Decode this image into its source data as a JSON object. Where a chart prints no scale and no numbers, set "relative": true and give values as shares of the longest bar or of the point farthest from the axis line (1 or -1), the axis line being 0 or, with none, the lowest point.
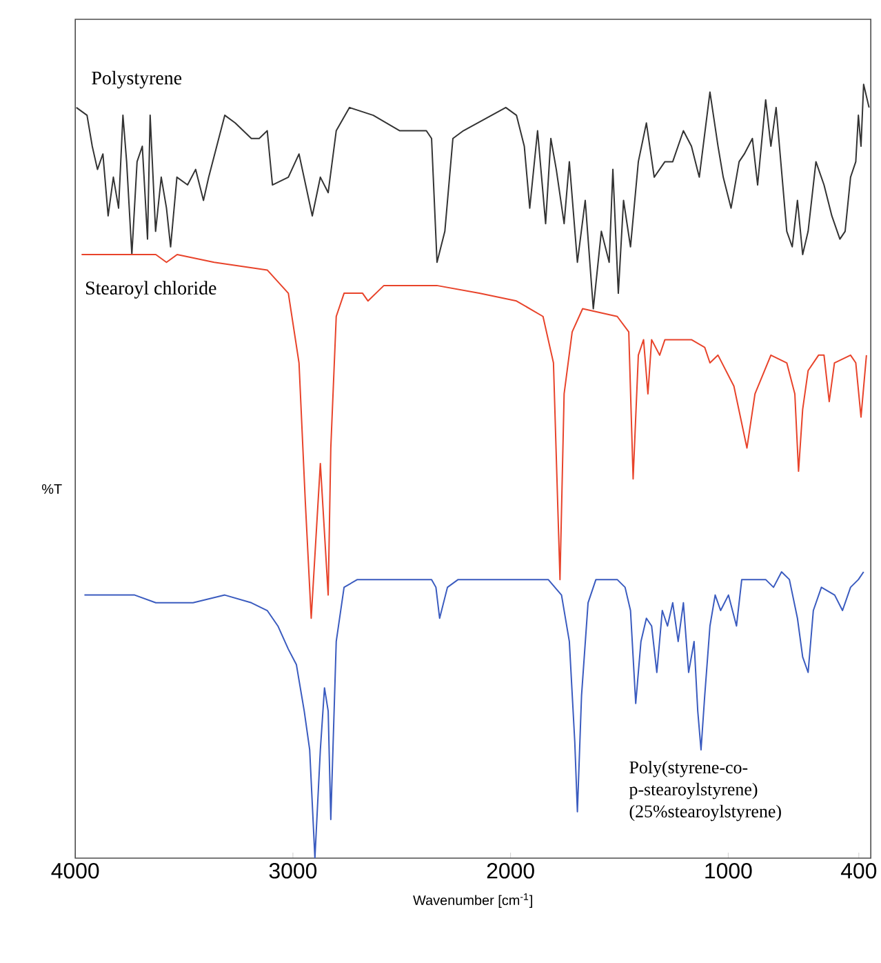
{
  "chart_data": {
    "type": "line",
    "relative": true,
    "xlabel": "Wavenumber [cm$^{-1}$]",
    "ylabel": "%T",
    "xlim": [
      4000,
      345
    ],
    "xticks": [
      4000,
      3000,
      2000,
      1000,
      400
    ],
    "grid": false,
    "marker": "none",
    "line_style": "solid",
    "series": [
      {
        "name": "Polystyrene",
        "color": "#333333",
        "x": [
          3995,
          3946,
          3922,
          3898,
          3873,
          3849,
          3825,
          3801,
          3781,
          3764,
          3740,
          3716,
          3692,
          3668,
          3656,
          3631,
          3605,
          3581,
          3562,
          3533,
          3484,
          3447,
          3411,
          3387,
          3313,
          3265,
          3191,
          3155,
          3118,
          3094,
          3021,
          2972,
          2911,
          2874,
          2838,
          2801,
          2740,
          2631,
          2509,
          2387,
          2363,
          2338,
          2302,
          2265,
          2217,
          2022,
          1973,
          1937,
          1912,
          1876,
          1839,
          1815,
          1790,
          1754,
          1730,
          1693,
          1657,
          1620,
          1583,
          1547,
          1530,
          1505,
          1481,
          1449,
          1413,
          1376,
          1340,
          1291,
          1255,
          1206,
          1169,
          1133,
          1084,
          1047,
          1023,
          987,
          950,
          926,
          889,
          865,
          828,
          804,
          780,
          731,
          706,
          682,
          658,
          633,
          597,
          560,
          524,
          487,
          463,
          438,
          414,
          402,
          390,
          378,
          353
        ],
        "values": [
          0.97,
          0.96,
          0.92,
          0.89,
          0.91,
          0.83,
          0.88,
          0.84,
          0.96,
          0.9,
          0.78,
          0.9,
          0.92,
          0.8,
          0.96,
          0.81,
          0.88,
          0.84,
          0.79,
          0.88,
          0.87,
          0.89,
          0.85,
          0.88,
          0.96,
          0.95,
          0.93,
          0.93,
          0.94,
          0.87,
          0.88,
          0.91,
          0.83,
          0.88,
          0.86,
          0.94,
          0.97,
          0.96,
          0.94,
          0.94,
          0.93,
          0.77,
          0.81,
          0.93,
          0.94,
          0.97,
          0.96,
          0.92,
          0.84,
          0.94,
          0.82,
          0.93,
          0.89,
          0.82,
          0.9,
          0.77,
          0.85,
          0.71,
          0.81,
          0.77,
          0.89,
          0.73,
          0.85,
          0.79,
          0.9,
          0.95,
          0.88,
          0.9,
          0.9,
          0.94,
          0.92,
          0.88,
          0.99,
          0.92,
          0.88,
          0.84,
          0.9,
          0.91,
          0.93,
          0.87,
          0.98,
          0.92,
          0.97,
          0.81,
          0.79,
          0.85,
          0.78,
          0.81,
          0.9,
          0.87,
          0.83,
          0.8,
          0.81,
          0.88,
          0.9,
          0.96,
          0.92,
          1.0,
          0.97
        ]
      },
      {
        "name": "Stearoyl chloride",
        "color": "#e8432a",
        "x": [
          3971,
          3849,
          3752,
          3630,
          3581,
          3532,
          3362,
          3118,
          3021,
          2972,
          2943,
          2916,
          2874,
          2838,
          2826,
          2801,
          2765,
          2680,
          2655,
          2582,
          2339,
          2144,
          1973,
          1851,
          1803,
          1773,
          1754,
          1717,
          1669,
          1510,
          1457,
          1437,
          1413,
          1389,
          1369,
          1352,
          1315,
          1291,
          1169,
          1108,
          1084,
          1047,
          974,
          914,
          877,
          804,
          731,
          694,
          677,
          658,
          633,
          585,
          560,
          536,
          512,
          438,
          414,
          390,
          365
        ],
        "values": [
          0.78,
          0.78,
          0.78,
          0.78,
          0.77,
          0.78,
          0.77,
          0.76,
          0.73,
          0.64,
          0.46,
          0.31,
          0.51,
          0.34,
          0.53,
          0.7,
          0.73,
          0.73,
          0.72,
          0.74,
          0.74,
          0.73,
          0.72,
          0.7,
          0.64,
          0.36,
          0.6,
          0.68,
          0.71,
          0.7,
          0.68,
          0.49,
          0.65,
          0.67,
          0.6,
          0.67,
          0.65,
          0.67,
          0.67,
          0.66,
          0.64,
          0.65,
          0.61,
          0.53,
          0.6,
          0.65,
          0.64,
          0.6,
          0.5,
          0.58,
          0.63,
          0.65,
          0.65,
          0.59,
          0.64,
          0.65,
          0.64,
          0.57,
          0.65
        ]
      },
      {
        "name": "Poly(styrene-co-p-stearoylstyrene) (25%stearoylstyrene)",
        "color": "#3a5bbf",
        "x": [
          3958,
          3849,
          3776,
          3727,
          3630,
          3532,
          3459,
          3313,
          3191,
          3118,
          3069,
          3021,
          2984,
          2948,
          2923,
          2899,
          2874,
          2855,
          2838,
          2826,
          2801,
          2765,
          2704,
          2533,
          2363,
          2343,
          2326,
          2290,
          2241,
          1998,
          1900,
          1827,
          1766,
          1730,
          1705,
          1693,
          1674,
          1644,
          1608,
          1559,
          1510,
          1474,
          1449,
          1425,
          1401,
          1376,
          1352,
          1328,
          1303,
          1279,
          1255,
          1230,
          1206,
          1182,
          1157,
          1140,
          1125,
          1108,
          1084,
          1060,
          1035,
          999,
          962,
          938,
          877,
          828,
          792,
          755,
          719,
          682,
          658,
          633,
          609,
          572,
          511,
          475,
          438,
          402,
          378
        ],
        "values": [
          0.34,
          0.34,
          0.34,
          0.34,
          0.33,
          0.33,
          0.33,
          0.34,
          0.33,
          0.32,
          0.3,
          0.27,
          0.25,
          0.19,
          0.14,
          0.0,
          0.14,
          0.22,
          0.19,
          0.05,
          0.28,
          0.35,
          0.36,
          0.36,
          0.36,
          0.35,
          0.31,
          0.35,
          0.36,
          0.36,
          0.36,
          0.36,
          0.34,
          0.28,
          0.15,
          0.06,
          0.21,
          0.33,
          0.36,
          0.36,
          0.36,
          0.35,
          0.32,
          0.2,
          0.28,
          0.31,
          0.3,
          0.24,
          0.32,
          0.3,
          0.33,
          0.28,
          0.33,
          0.24,
          0.28,
          0.19,
          0.14,
          0.21,
          0.3,
          0.34,
          0.32,
          0.34,
          0.3,
          0.36,
          0.36,
          0.36,
          0.35,
          0.37,
          0.36,
          0.31,
          0.26,
          0.24,
          0.32,
          0.35,
          0.34,
          0.32,
          0.35,
          0.36,
          0.37
        ]
      }
    ]
  }
}
